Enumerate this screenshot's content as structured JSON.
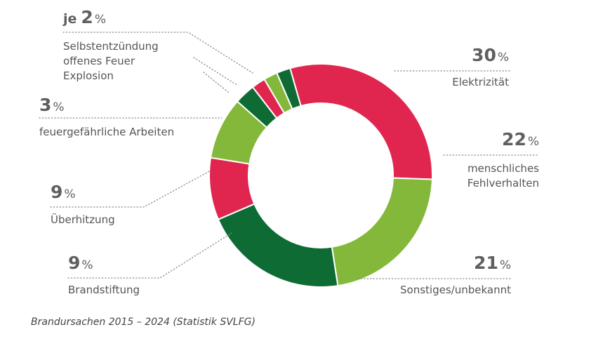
{
  "chart_data": {
    "type": "pie",
    "style": "donut",
    "slices": [
      {
        "label": "Elektrizität",
        "value": 30,
        "color": "#e0264f"
      },
      {
        "label": "menschliches Fehlverhalten",
        "value": 22,
        "color": "#84b83a"
      },
      {
        "label": "Sonstiges/unbekannt",
        "value": 21,
        "color": "#0f6b34"
      },
      {
        "label": "Brandstiftung",
        "value": 9,
        "color": "#e0264f"
      },
      {
        "label": "Überhitzung",
        "value": 9,
        "color": "#84b83a"
      },
      {
        "label": "feuergefährliche Arbeiten",
        "value": 3,
        "color": "#0f6b34"
      },
      {
        "label": "Explosion",
        "value": 2,
        "color": "#e0264f"
      },
      {
        "label": "offenes Feuer",
        "value": 2,
        "color": "#84b83a"
      },
      {
        "label": "Selbstentzündung",
        "value": 2,
        "color": "#0f6b34"
      }
    ],
    "annotations": {
      "elektrizitaet": {
        "value": "30",
        "unit": "%",
        "text": [
          "Elektrizität"
        ]
      },
      "fehlverhalten": {
        "value": "22",
        "unit": "%",
        "text": [
          "menschliches",
          "Fehlverhalten"
        ]
      },
      "sonstiges": {
        "value": "21",
        "unit": "%",
        "text": [
          "Sonstiges/unbekannt"
        ]
      },
      "brandstiftung": {
        "value": "9",
        "unit": "%",
        "text": [
          "Brandstiftung"
        ]
      },
      "ueberhitzung": {
        "value": "9",
        "unit": "%",
        "text": [
          "Überhitzung"
        ]
      },
      "arbeiten": {
        "value": "3",
        "unit": "%",
        "text": [
          "feuergefährliche Arbeiten"
        ]
      },
      "klein": {
        "prefix": "je",
        "value": "2",
        "unit": "%",
        "text": [
          "Selbstentzündung",
          "offenes Feuer",
          "Explosion"
        ]
      }
    },
    "caption": "Brandursachen 2015 – 2024 (Statistik SVLFG)"
  }
}
